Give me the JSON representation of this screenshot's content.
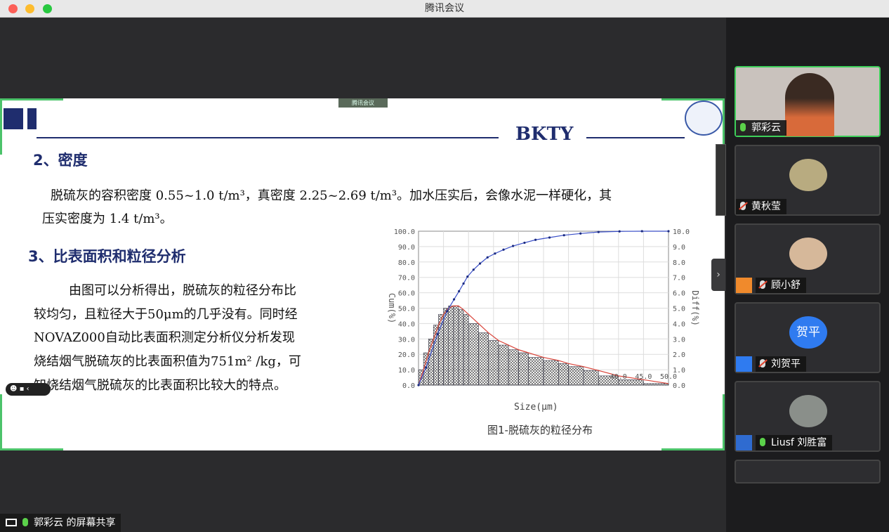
{
  "window": {
    "title": "腾讯会议"
  },
  "share_badge": "腾讯会议",
  "share_label": {
    "presenter": "郭彩云",
    "suffix": "的屏幕共享"
  },
  "slide": {
    "brand": "BKTY",
    "section2": "2、密度",
    "density_line1": "脱硫灰的容积密度 0.55~1.0 t/m³，真密度 2.25~2.69 t/m³。加水压实后，会像水泥一样硬化，其",
    "density_line2": "压实密度为 1.4 t/m³。",
    "section3": "3、比表面积和粒径分析",
    "analysis_lines": [
      "由图可以分析得出，脱硫灰的粒径分布比",
      "较均匀，且粒径大于50μm的几乎没有。同时经",
      "NOVAZ000自动比表面积测定分析仪分析发现",
      "烧结烟气脱硫灰的比表面积值为751m²  /kg，可",
      "知烧结烟气脱硫灰的比表面积比较大的特点。"
    ],
    "caption": "图1-脱硫灰的粒径分布"
  },
  "chart_data": {
    "type": "line",
    "xlabel": "Size(μm)",
    "ylabel": "Cum(%)",
    "y2label": "Diff(%)",
    "xlim": [
      0,
      50
    ],
    "ylim": [
      0,
      100
    ],
    "y2lim": [
      0,
      10
    ],
    "x_tick_labels": [
      "40.0",
      "45.0",
      "50.0"
    ],
    "y_ticks": [
      "0.0",
      "10.0",
      "20.0",
      "30.0",
      "40.0",
      "50.0",
      "60.0",
      "70.0",
      "80.0",
      "90.0",
      "100.0"
    ],
    "y2_ticks": [
      "0.0",
      "1.0",
      "2.0",
      "3.0",
      "4.0",
      "5.0",
      "6.0",
      "7.0",
      "8.0",
      "9.0",
      "10.0"
    ],
    "grid": true,
    "series": [
      {
        "axis": "left",
        "style": "line-markers",
        "color": "#3a4fc8",
        "x": [
          0,
          1.5,
          3.8,
          5.7,
          7.1,
          8.1,
          9.0,
          9.8,
          11,
          12.3,
          13.8,
          15.3,
          17,
          18.9,
          21.2,
          23.4,
          26.2,
          29.1,
          32.4,
          36,
          40.2,
          44.7,
          50
        ],
        "y": [
          0,
          11.5,
          33,
          48,
          55.7,
          61,
          66,
          70.5,
          75,
          79,
          83,
          85.5,
          88,
          90.4,
          92.5,
          94.4,
          95.9,
          97.4,
          98.5,
          99.5,
          99.9,
          100,
          100
        ]
      },
      {
        "axis": "right",
        "style": "histogram",
        "color": "#d9443a",
        "x": [
          0,
          1,
          2,
          3,
          4,
          5,
          6,
          7,
          8,
          9,
          10,
          12,
          14,
          16,
          18,
          20,
          22,
          25,
          28,
          30,
          33,
          36,
          40,
          45,
          50
        ],
        "y": [
          0,
          1,
          2.1,
          3,
          3.9,
          4.6,
          5,
          5.15,
          5.15,
          4.9,
          4.6,
          4,
          3.4,
          2.9,
          2.6,
          2.3,
          2.1,
          1.8,
          1.6,
          1.4,
          1.2,
          0.95,
          0.6,
          0.35,
          0.1
        ]
      }
    ]
  },
  "participants": [
    {
      "name": "郭彩云",
      "mic": "on",
      "active": true
    },
    {
      "name": "黄秋莹",
      "mic": "muted"
    },
    {
      "name": "顾小舒",
      "mic": "muted",
      "badge_color": "#f08a2c"
    },
    {
      "name": "刘贺平",
      "mic": "muted",
      "avatar_text": "贺平",
      "badge_color": "#2f7bf0"
    },
    {
      "name": "Liusf 刘胜富",
      "mic": "on",
      "badge_color": "#2f7bf0"
    }
  ]
}
